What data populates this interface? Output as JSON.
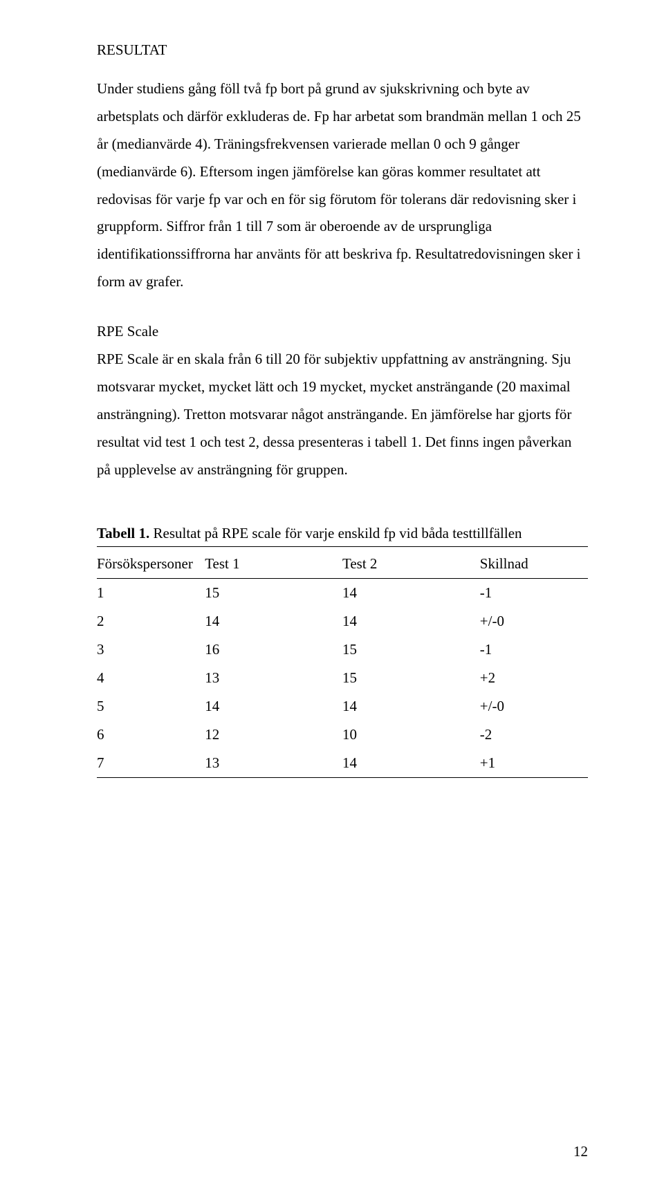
{
  "section_title": "RESULTAT",
  "para1": "Under studiens gång föll två fp bort på grund av sjukskrivning och byte av arbetsplats och därför exkluderas de. Fp har arbetat som brandmän mellan 1 och 25 år (medianvärde 4). Träningsfrekvensen varierade mellan 0 och 9 gånger (medianvärde 6). Eftersom ingen jämförelse kan göras kommer resultatet att redovisas för varje fp var och en för sig förutom för tolerans där redovisning sker i gruppform. Siffror från 1 till 7 som är oberoende av de ursprungliga identifikationssiffrorna har använts för att beskriva fp. Resultatredovisningen sker i form av grafer.",
  "sub_heading": "RPE Scale",
  "para2": "RPE Scale är en skala från 6 till 20 för subjektiv uppfattning av ansträngning. Sju motsvarar mycket, mycket lätt och 19 mycket, mycket ansträngande (20 maximal ansträngning). Tretton motsvarar något ansträngande. En jämförelse har gjorts för resultat vid test 1 och test 2, dessa presenteras i tabell 1. Det finns ingen påverkan på upplevelse av ansträngning för gruppen.",
  "table_caption_bold": "Tabell 1.",
  "table_caption_rest": " Resultat på RPE scale för varje enskild fp vid båda testtillfällen",
  "table": {
    "columns": [
      "Försökspersoner",
      "Test 1",
      "Test 2",
      "Skillnad"
    ],
    "rows": [
      [
        "1",
        "15",
        "14",
        "-1"
      ],
      [
        "2",
        "14",
        "14",
        "+/-0"
      ],
      [
        "3",
        "16",
        "15",
        "-1"
      ],
      [
        "4",
        "13",
        "15",
        "+2"
      ],
      [
        "5",
        "14",
        "14",
        "+/-0"
      ],
      [
        "6",
        "12",
        "10",
        "-2"
      ],
      [
        "7",
        "13",
        "14",
        "+1"
      ]
    ]
  },
  "page_number": "12"
}
